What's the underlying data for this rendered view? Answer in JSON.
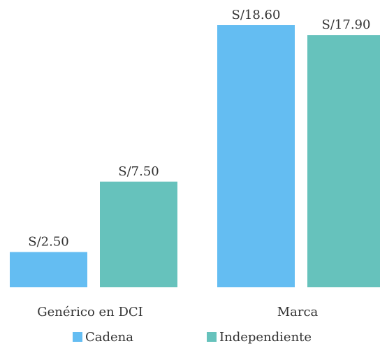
{
  "chart_data": {
    "type": "bar",
    "categories": [
      "Genérico en DCI",
      "Marca"
    ],
    "series": [
      {
        "name": "Cadena",
        "color": "#64bdf2",
        "values": [
          2.5,
          18.6
        ],
        "value_labels": [
          "S/2.50",
          "S/18.60"
        ]
      },
      {
        "name": "Independiente",
        "color": "#66c2bc",
        "values": [
          7.5,
          17.9
        ],
        "value_labels": [
          "S/7.50",
          "S/17.90"
        ]
      }
    ],
    "legend": "bottom"
  }
}
